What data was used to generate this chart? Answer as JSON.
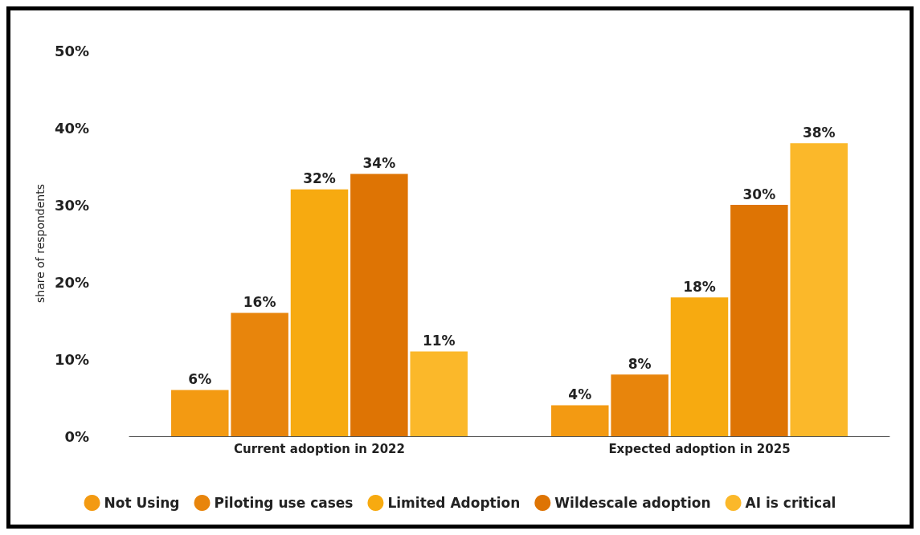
{
  "chart_data": {
    "type": "bar",
    "ylabel": "share of respondents",
    "categories": [
      "Current adoption in 2022",
      "Expected adoption in 2025"
    ],
    "series": [
      {
        "name": "Not Using",
        "color": "#f39a12",
        "values": [
          6,
          4
        ],
        "value_labels": [
          "6%",
          "4%"
        ]
      },
      {
        "name": "Piloting use cases",
        "color": "#e8850c",
        "values": [
          16,
          8
        ],
        "value_labels": [
          "16%",
          "8%"
        ]
      },
      {
        "name": "Limited Adoption",
        "color": "#f7aa10",
        "values": [
          32,
          18
        ],
        "value_labels": [
          "32%",
          "18%"
        ]
      },
      {
        "name": "Wildescale adoption",
        "color": "#de7404",
        "values": [
          34,
          30
        ],
        "value_labels": [
          "34%",
          "30%"
        ]
      },
      {
        "name": "AI is critical",
        "color": "#fbb82a",
        "values": [
          11,
          38
        ],
        "value_labels": [
          "11%",
          "38%"
        ]
      }
    ],
    "ylim": [
      0,
      50
    ],
    "yticks": [
      {
        "value": 0,
        "label": "0%"
      },
      {
        "value": 10,
        "label": "10%"
      },
      {
        "value": 20,
        "label": "20%"
      },
      {
        "value": 30,
        "label": "30%"
      },
      {
        "value": 40,
        "label": "40%"
      },
      {
        "value": 50,
        "label": "50%"
      }
    ],
    "grid": false,
    "legend": "bottom"
  }
}
